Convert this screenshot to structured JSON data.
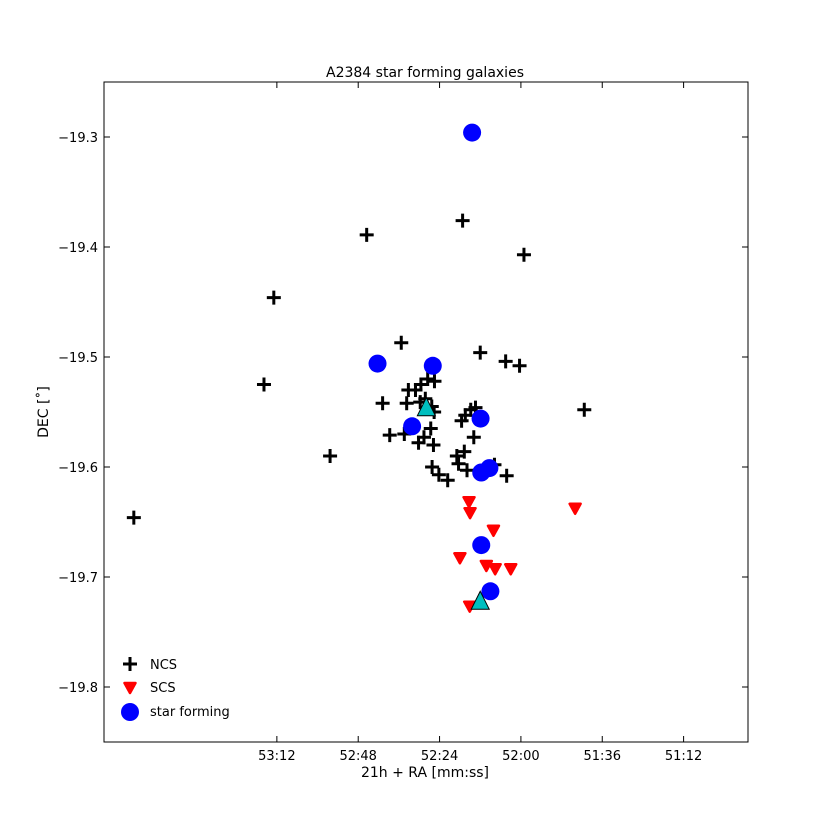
{
  "chart_data": {
    "type": "scatter",
    "title": "A2384 star forming galaxies",
    "xlabel": "21h + RA [mm:ss]",
    "ylabel": "DEC [˚]",
    "x_unit": "seconds of RA past 21h",
    "x_inverted": true,
    "xlim": [
      3243,
      3053
    ],
    "ylim": [
      -19.85,
      -19.25
    ],
    "x_ticks": [
      {
        "value": 3192,
        "label": "53:12"
      },
      {
        "value": 3168,
        "label": "52:48"
      },
      {
        "value": 3144,
        "label": "52:24"
      },
      {
        "value": 3120,
        "label": "52:00"
      },
      {
        "value": 3096,
        "label": "51:36"
      },
      {
        "value": 3072,
        "label": "51:12"
      }
    ],
    "y_ticks": [
      {
        "value": -19.3,
        "label": "−19.3"
      },
      {
        "value": -19.4,
        "label": "−19.4"
      },
      {
        "value": -19.5,
        "label": "−19.5"
      },
      {
        "value": -19.6,
        "label": "−19.6"
      },
      {
        "value": -19.7,
        "label": "−19.7"
      },
      {
        "value": -19.8,
        "label": "−19.8"
      }
    ],
    "grid": false,
    "legend_position": "bottom-left",
    "series": [
      {
        "name": "NCS",
        "marker": "plus",
        "color": "#000000",
        "points": [
          [
            3234.2,
            -19.646
          ],
          [
            3195.8,
            -19.525
          ],
          [
            3192.9,
            -19.446
          ],
          [
            3176.3,
            -19.59
          ],
          [
            3165.5,
            -19.389
          ],
          [
            3160.8,
            -19.542
          ],
          [
            3158.7,
            -19.571
          ],
          [
            3155.3,
            -19.487
          ],
          [
            3154.4,
            -19.57
          ],
          [
            3153.7,
            -19.542
          ],
          [
            3153.2,
            -19.53
          ],
          [
            3151.1,
            -19.53
          ],
          [
            3150.2,
            -19.578
          ],
          [
            3149.7,
            -19.541
          ],
          [
            3149.5,
            -19.525
          ],
          [
            3148.6,
            -19.573
          ],
          [
            3148.2,
            -19.538
          ],
          [
            3147.5,
            -19.52
          ],
          [
            3146.6,
            -19.565
          ],
          [
            3146.3,
            -19.545
          ],
          [
            3146.2,
            -19.6
          ],
          [
            3145.8,
            -19.58
          ],
          [
            3145.6,
            -19.55
          ],
          [
            3145.5,
            -19.522
          ],
          [
            3144.2,
            -19.607
          ],
          [
            3141.6,
            -19.612
          ],
          [
            3138.9,
            -19.59
          ],
          [
            3138.4,
            -19.597
          ],
          [
            3137.5,
            -19.558
          ],
          [
            3137.2,
            -19.376
          ],
          [
            3136.7,
            -19.586
          ],
          [
            3136.4,
            -19.553
          ],
          [
            3135.9,
            -19.603
          ],
          [
            3134.8,
            -19.548
          ],
          [
            3133.9,
            -19.573
          ],
          [
            3133.4,
            -19.546
          ],
          [
            3132.0,
            -19.496
          ],
          [
            3129.1,
            -19.6
          ],
          [
            3127.8,
            -19.598
          ],
          [
            3124.5,
            -19.504
          ],
          [
            3124.2,
            -19.608
          ],
          [
            3120.4,
            -19.508
          ],
          [
            3119.1,
            -19.407
          ],
          [
            3101.3,
            -19.548
          ]
        ]
      },
      {
        "name": "SCS",
        "marker": "triangle-down",
        "color": "#ff0000",
        "points": [
          [
            3138.0,
            -19.683
          ],
          [
            3135.3,
            -19.632
          ],
          [
            3135.1,
            -19.727
          ],
          [
            3135.0,
            -19.642
          ],
          [
            3130.2,
            -19.69
          ],
          [
            3128.1,
            -19.658
          ],
          [
            3127.6,
            -19.693
          ],
          [
            3123.0,
            -19.693
          ],
          [
            3104.0,
            -19.638
          ]
        ]
      },
      {
        "name": "star forming",
        "marker": "circle",
        "color": "#0000ff",
        "points": [
          [
            3162.3,
            -19.506
          ],
          [
            3152.1,
            -19.563
          ],
          [
            3146.0,
            -19.508
          ],
          [
            3134.4,
            -19.296
          ],
          [
            3131.9,
            -19.556
          ],
          [
            3131.7,
            -19.605
          ],
          [
            3131.7,
            -19.671
          ],
          [
            3129.3,
            -19.601
          ],
          [
            3129.0,
            -19.713
          ]
        ]
      },
      {
        "marker": "triangle-up",
        "color": "#00bfbf",
        "points": [
          [
            3147.9,
            -19.547
          ],
          [
            3132.0,
            -19.723
          ]
        ]
      }
    ]
  }
}
